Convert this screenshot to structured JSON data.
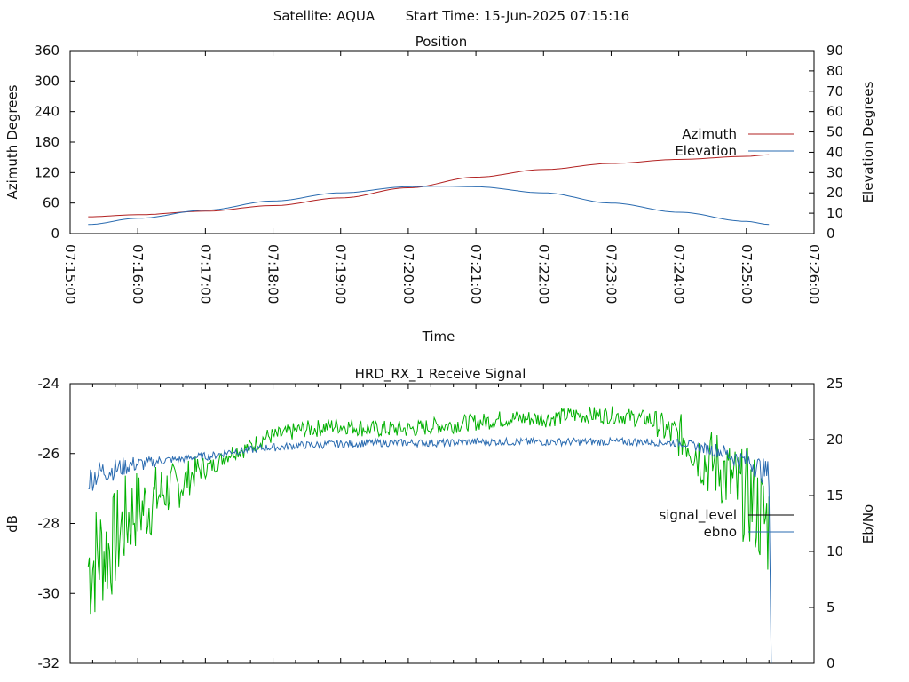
{
  "header": {
    "satellite": "Satellite: AQUA",
    "start_time": "Start Time: 15-Jun-2025 07:15:16"
  },
  "colors": {
    "azimuth": "#b22222",
    "elevation": "#2a6bb0",
    "signal_level": "#00b000",
    "ebno": "#2a6bb0",
    "legend_signal_level": "#000000"
  },
  "chart_data": [
    {
      "type": "line",
      "title": "Position",
      "xlabel": "Time",
      "ylabel": "Azimuth Degrees",
      "y2label": "Elevation Degrees",
      "xlim": [
        "07:15:00",
        "07:26:00"
      ],
      "ylim": [
        0,
        360
      ],
      "y2lim": [
        0,
        90
      ],
      "x_ticks": [
        "07:15:00",
        "07:16:00",
        "07:17:00",
        "07:18:00",
        "07:19:00",
        "07:20:00",
        "07:21:00",
        "07:22:00",
        "07:23:00",
        "07:24:00",
        "07:25:00",
        "07:26:00"
      ],
      "y_ticks": [
        "0",
        "60",
        "120",
        "180",
        "240",
        "300",
        "360"
      ],
      "y2_ticks": [
        "0",
        "10",
        "20",
        "30",
        "40",
        "50",
        "60",
        "70",
        "80",
        "90"
      ],
      "legend_position": "right",
      "series": [
        {
          "name": "Azimuth",
          "axis": "y",
          "x": [
            "07:15:16",
            "07:16:00",
            "07:17:00",
            "07:18:00",
            "07:19:00",
            "07:20:00",
            "07:21:00",
            "07:22:00",
            "07:23:00",
            "07:24:00",
            "07:25:00",
            "07:25:20"
          ],
          "values": [
            33,
            37,
            44,
            55,
            70,
            90,
            111,
            126,
            138,
            146,
            152,
            155
          ]
        },
        {
          "name": "Elevation",
          "axis": "y2",
          "x": [
            "07:15:16",
            "07:16:00",
            "07:17:00",
            "07:18:00",
            "07:19:00",
            "07:20:00",
            "07:20:30",
            "07:21:00",
            "07:22:00",
            "07:23:00",
            "07:24:00",
            "07:25:00",
            "07:25:20"
          ],
          "values": [
            4.5,
            7.5,
            11.5,
            16,
            20,
            23,
            23.3,
            23,
            20,
            15,
            10.5,
            6,
            4.5
          ]
        }
      ]
    },
    {
      "type": "line",
      "title": "HRD_RX_1 Receive Signal",
      "xlabel": "",
      "ylabel": "dB",
      "y2label": "Eb/No",
      "xlim": [
        "07:15:00",
        "07:26:00"
      ],
      "ylim": [
        -32,
        -24
      ],
      "y2lim": [
        0,
        25
      ],
      "y_ticks": [
        "-24",
        "-26",
        "-28",
        "-30",
        "-32"
      ],
      "y2_ticks": [
        "0",
        "5",
        "10",
        "15",
        "20",
        "25"
      ],
      "legend_position": "right",
      "series": [
        {
          "name": "signal_level",
          "axis": "y",
          "x": [
            "07:15:16",
            "07:15:30",
            "07:16:00",
            "07:16:30",
            "07:17:00",
            "07:17:30",
            "07:18:00",
            "07:18:30",
            "07:19:00",
            "07:19:30",
            "07:20:00",
            "07:20:30",
            "07:21:00",
            "07:21:30",
            "07:22:00",
            "07:22:30",
            "07:23:00",
            "07:23:30",
            "07:24:00",
            "07:24:30",
            "07:25:00",
            "07:25:20"
          ],
          "values": [
            -29.2,
            -28.8,
            -27.6,
            -27.0,
            -26.4,
            -25.9,
            -25.5,
            -25.3,
            -25.2,
            -25.3,
            -25.3,
            -25.2,
            -25.1,
            -25.0,
            -25.0,
            -24.9,
            -24.9,
            -25.0,
            -25.5,
            -26.3,
            -27.2,
            -28.0
          ]
        },
        {
          "name": "ebno",
          "axis": "y2",
          "x": [
            "07:15:16",
            "07:15:30",
            "07:16:00",
            "07:16:30",
            "07:17:00",
            "07:17:30",
            "07:18:00",
            "07:18:30",
            "07:19:00",
            "07:19:30",
            "07:20:00",
            "07:20:30",
            "07:21:00",
            "07:21:30",
            "07:22:00",
            "07:22:30",
            "07:23:00",
            "07:23:30",
            "07:24:00",
            "07:24:30",
            "07:25:00",
            "07:25:20",
            "07:25:22"
          ],
          "values": [
            16.5,
            17.2,
            17.8,
            18.2,
            18.5,
            19.0,
            19.3,
            19.5,
            19.6,
            19.7,
            19.7,
            19.7,
            19.8,
            19.8,
            19.8,
            19.8,
            19.8,
            19.8,
            19.7,
            19.1,
            18.1,
            17.0,
            0.0
          ]
        }
      ]
    }
  ]
}
